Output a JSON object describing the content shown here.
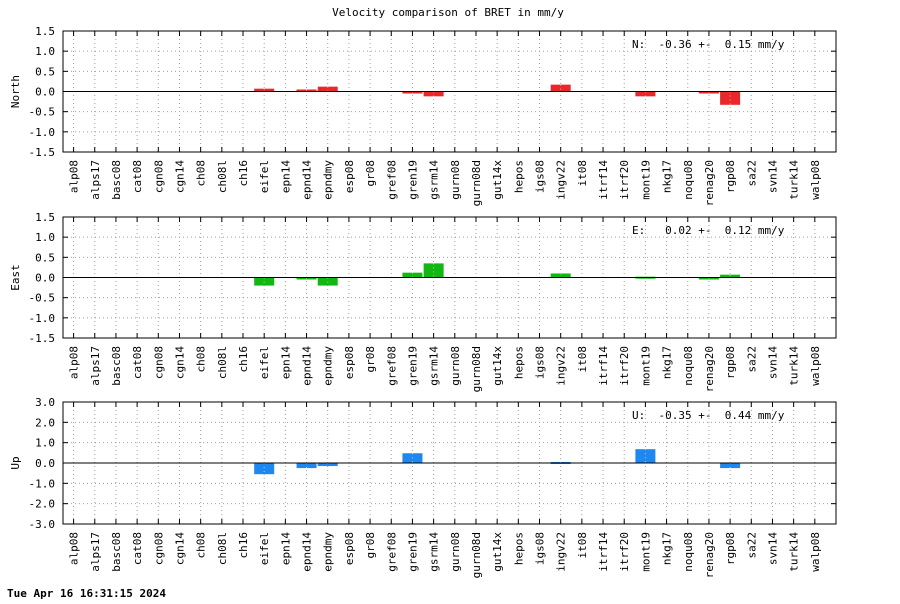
{
  "title": "Velocity comparison of BRET in mm/y",
  "timestamp": "Tue Apr 16 16:31:15 2024",
  "colors": {
    "north": "#e8282a",
    "east": "#12b812",
    "up": "#1e88f0",
    "grid": "#a0a0a0",
    "axis": "#000000"
  },
  "chart_data": [
    {
      "type": "bar",
      "ylabel": "North",
      "ylim": [
        -1.5,
        1.5
      ],
      "yticks": [
        -1.5,
        -1.0,
        -0.5,
        0.0,
        0.5,
        1.0,
        1.5
      ],
      "ytick_labels": [
        "-1.5",
        "-1.0",
        "-0.5",
        "0.0",
        "0.5",
        "1.0",
        "1.5"
      ],
      "annotation": "N:  -0.36 +-  0.15 mm/y",
      "grid": true,
      "color": "#e8282a",
      "categories": [
        "alp08",
        "alps17",
        "basc08",
        "cat08",
        "cgn08",
        "cgn14",
        "ch08",
        "ch08l",
        "ch16",
        "eifel",
        "epn14",
        "epnd14",
        "epndmy",
        "esp08",
        "gr08",
        "gref08",
        "gren19",
        "gsrm14",
        "gurn08",
        "gurn08d",
        "gut14x",
        "hepos",
        "igs08",
        "ingv22",
        "it08",
        "itrf14",
        "itrf20",
        "mont19",
        "nkg17",
        "noqu08",
        "renag20",
        "rgp08",
        "sa22",
        "svn14",
        "turk14",
        "walp08"
      ],
      "values": [
        null,
        null,
        null,
        null,
        null,
        null,
        null,
        null,
        null,
        0.07,
        null,
        0.05,
        0.12,
        null,
        null,
        null,
        -0.05,
        -0.12,
        null,
        null,
        null,
        null,
        null,
        0.17,
        null,
        null,
        null,
        -0.12,
        null,
        null,
        -0.03,
        -0.33,
        null,
        null,
        null,
        null
      ]
    },
    {
      "type": "bar",
      "ylabel": "East",
      "ylim": [
        -1.5,
        1.5
      ],
      "yticks": [
        -1.5,
        -1.0,
        -0.5,
        0.0,
        0.5,
        1.0,
        1.5
      ],
      "ytick_labels": [
        "-1.5",
        "-1.0",
        "-0.5",
        "0.0",
        "0.5",
        "1.0",
        "1.5"
      ],
      "annotation": "E:   0.02 +-  0.12 mm/y",
      "grid": true,
      "color": "#12b812",
      "categories": [
        "alp08",
        "alps17",
        "basc08",
        "cat08",
        "cgn08",
        "cgn14",
        "ch08",
        "ch08l",
        "ch16",
        "eifel",
        "epn14",
        "epnd14",
        "epndmy",
        "esp08",
        "gr08",
        "gref08",
        "gren19",
        "gsrm14",
        "gurn08",
        "gurn08d",
        "gut14x",
        "hepos",
        "igs08",
        "ingv22",
        "it08",
        "itrf14",
        "itrf20",
        "mont19",
        "nkg17",
        "noqu08",
        "renag20",
        "rgp08",
        "sa22",
        "svn14",
        "turk14",
        "walp08"
      ],
      "values": [
        null,
        null,
        null,
        null,
        null,
        null,
        null,
        null,
        null,
        -0.2,
        null,
        -0.03,
        -0.2,
        null,
        null,
        null,
        0.12,
        0.35,
        null,
        null,
        null,
        null,
        null,
        0.1,
        null,
        null,
        null,
        0.02,
        null,
        null,
        -0.03,
        0.07,
        null,
        null,
        null,
        null
      ]
    },
    {
      "type": "bar",
      "ylabel": "Up",
      "ylim": [
        -3.0,
        3.0
      ],
      "yticks": [
        -3.0,
        -2.0,
        -1.0,
        0.0,
        1.0,
        2.0,
        3.0
      ],
      "ytick_labels": [
        "-3.0",
        "-2.0",
        "-1.0",
        "0.0",
        "1.0",
        "2.0",
        "3.0"
      ],
      "annotation": "U:  -0.35 +-  0.44 mm/y",
      "grid": true,
      "color": "#1e88f0",
      "categories": [
        "alp08",
        "alps17",
        "basc08",
        "cat08",
        "cgn08",
        "cgn14",
        "ch08",
        "ch08l",
        "ch16",
        "eifel",
        "epn14",
        "epnd14",
        "epndmy",
        "esp08",
        "gr08",
        "gref08",
        "gren19",
        "gsrm14",
        "gurn08",
        "gurn08d",
        "gut14x",
        "hepos",
        "igs08",
        "ingv22",
        "it08",
        "itrf14",
        "itrf20",
        "mont19",
        "nkg17",
        "noqu08",
        "renag20",
        "rgp08",
        "sa22",
        "svn14",
        "turk14",
        "walp08"
      ],
      "values": [
        null,
        null,
        null,
        null,
        null,
        null,
        null,
        null,
        null,
        -0.55,
        null,
        -0.25,
        -0.15,
        null,
        null,
        null,
        0.48,
        null,
        null,
        null,
        null,
        null,
        null,
        0.05,
        null,
        null,
        null,
        0.68,
        null,
        null,
        null,
        -0.25,
        null,
        null,
        null,
        null
      ]
    }
  ]
}
